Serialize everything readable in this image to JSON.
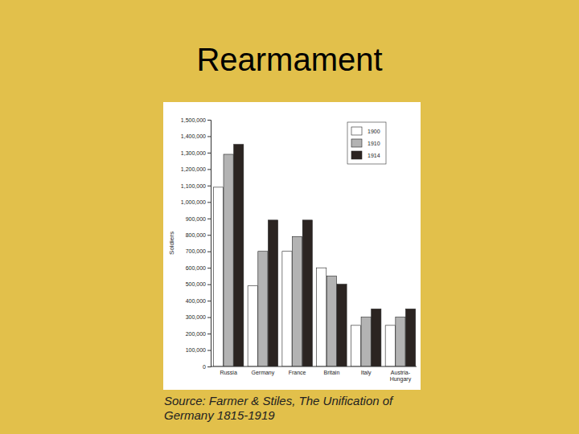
{
  "chart_data": {
    "type": "bar",
    "title": "Rearmament",
    "source": "Source: Farmer & Stiles, The Unification of Germany 1815-1919",
    "y_label": "Soldiers",
    "categories": [
      "Russia",
      "Germany",
      "France",
      "Britain",
      "Italy",
      "Austria-Hungary"
    ],
    "series": [
      {
        "name": "1900",
        "color": "#ffffff",
        "values": [
          1090000,
          490000,
          700000,
          600000,
          250000,
          250000
        ]
      },
      {
        "name": "1910",
        "color": "#b3b3b3",
        "values": [
          1290000,
          700000,
          790000,
          550000,
          300000,
          300000
        ]
      },
      {
        "name": "1914",
        "color": "#2b2421",
        "values": [
          1350000,
          890000,
          890000,
          500000,
          350000,
          350000
        ]
      }
    ],
    "ylim": [
      0,
      1500000
    ],
    "yticks": [
      0,
      {
        "value": 100000,
        "label": "100,000"
      },
      {
        "value": 200000,
        "label": "200,000"
      },
      {
        "value": 300000,
        "label": "300,000"
      },
      {
        "value": 400000,
        "label": "400,000"
      },
      {
        "value": 500000,
        "label": "500,000"
      },
      {
        "value": 600000,
        "label": "600,000"
      },
      {
        "value": 700000,
        "label": "700,000"
      },
      {
        "value": 800000,
        "label": "800,000"
      },
      {
        "value": 900000,
        "label": "900,000"
      },
      {
        "value": 1000000,
        "label": "1,000,000"
      },
      {
        "value": 1100000,
        "label": "1,100,000"
      },
      {
        "value": 1200000,
        "label": "1,200,000"
      },
      {
        "value": 1300000,
        "label": "1,300,000"
      },
      {
        "value": 1400000,
        "label": "1,400,000"
      },
      {
        "value": 1500000,
        "label": "1,500,000"
      }
    ],
    "grid": false,
    "legend": "upper right"
  }
}
